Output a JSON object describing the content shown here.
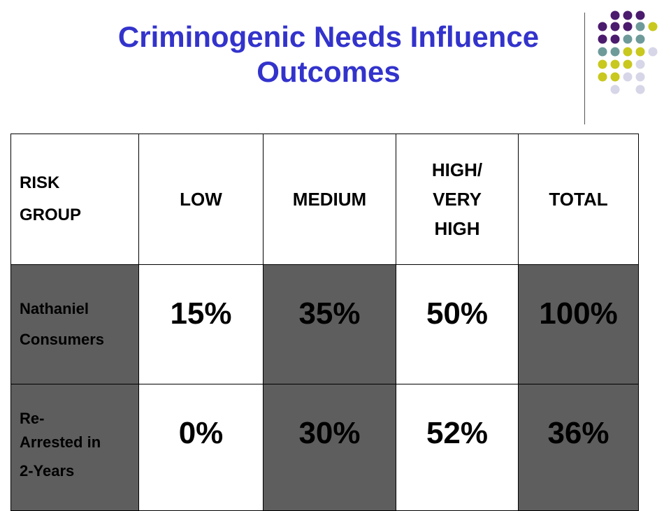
{
  "title_line1": "Criminogenic Needs Influence",
  "title_line2": "Outcomes",
  "colors": {
    "title": "#3333cc",
    "purple": "#4b1b6e",
    "teal": "#6e9a9a",
    "olive": "#c8c81e",
    "lavender": "#d6d6e8",
    "cell_dark": "#5e5e5e"
  },
  "table": {
    "header": {
      "group_line1": "RISK",
      "group_line2": "GROUP",
      "low": "LOW",
      "medium": "MEDIUM",
      "high_line1": "HIGH/",
      "high_line2": "VERY",
      "high_line3": "HIGH",
      "total": "TOTAL"
    },
    "rows": [
      {
        "label_line1": "Nathaniel",
        "label_line2": "Consumers",
        "low": "15%",
        "medium": "35%",
        "high": "50%",
        "total": "100%"
      },
      {
        "label_line1": "Re-",
        "label_line2": "Arrested in",
        "label_line3": "2-Years",
        "low": "0%",
        "medium": "30%",
        "high": "52%",
        "total": "36%"
      }
    ]
  }
}
